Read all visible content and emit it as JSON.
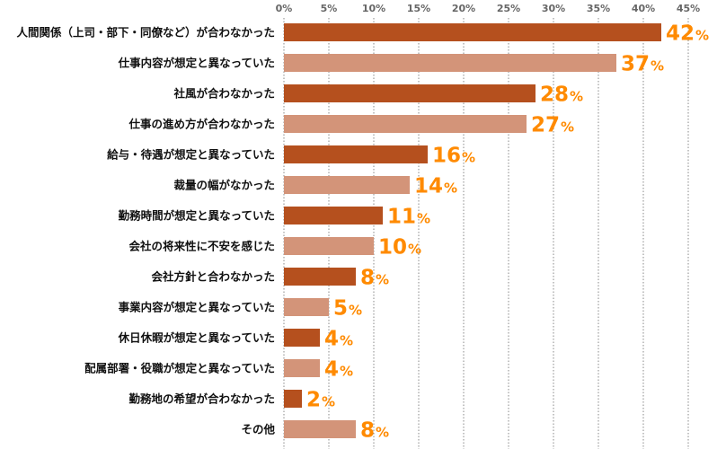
{
  "chart_data": {
    "type": "bar",
    "orientation": "horizontal",
    "title": "",
    "xlabel": "",
    "ylabel": "",
    "xlim": [
      0,
      45
    ],
    "ticks": [
      0,
      5,
      10,
      15,
      20,
      25,
      30,
      35,
      40,
      45
    ],
    "tick_labels": [
      "0%",
      "5%",
      "10%",
      "15%",
      "20%",
      "25%",
      "30%",
      "35%",
      "40%",
      "45%"
    ],
    "grid": true,
    "categories": [
      "人間関係（上司・部下・同僚など）が合わなかった",
      "仕事内容が想定と異なっていた",
      "社風が合わなかった",
      "仕事の進め方が合わなかった",
      "給与・待遇が想定と異なっていた",
      "裁量の幅がなかった",
      "勤務時間が想定と異なっていた",
      "会社の将来性に不安を感じた",
      "会社方針と合わなかった",
      "事業内容が想定と異なっていた",
      "休日休暇が想定と異なっていた",
      "配属部署・役職が想定と異なっていた",
      "勤務地の希望が合わなかった",
      "その他"
    ],
    "values": [
      42,
      37,
      28,
      27,
      16,
      14,
      11,
      10,
      8,
      5,
      4,
      4,
      2,
      8
    ],
    "value_unit": "%",
    "colors": {
      "dark": "#b5501e",
      "light": "#d39479",
      "label": "#ff8a00",
      "grid": "#888888"
    }
  }
}
